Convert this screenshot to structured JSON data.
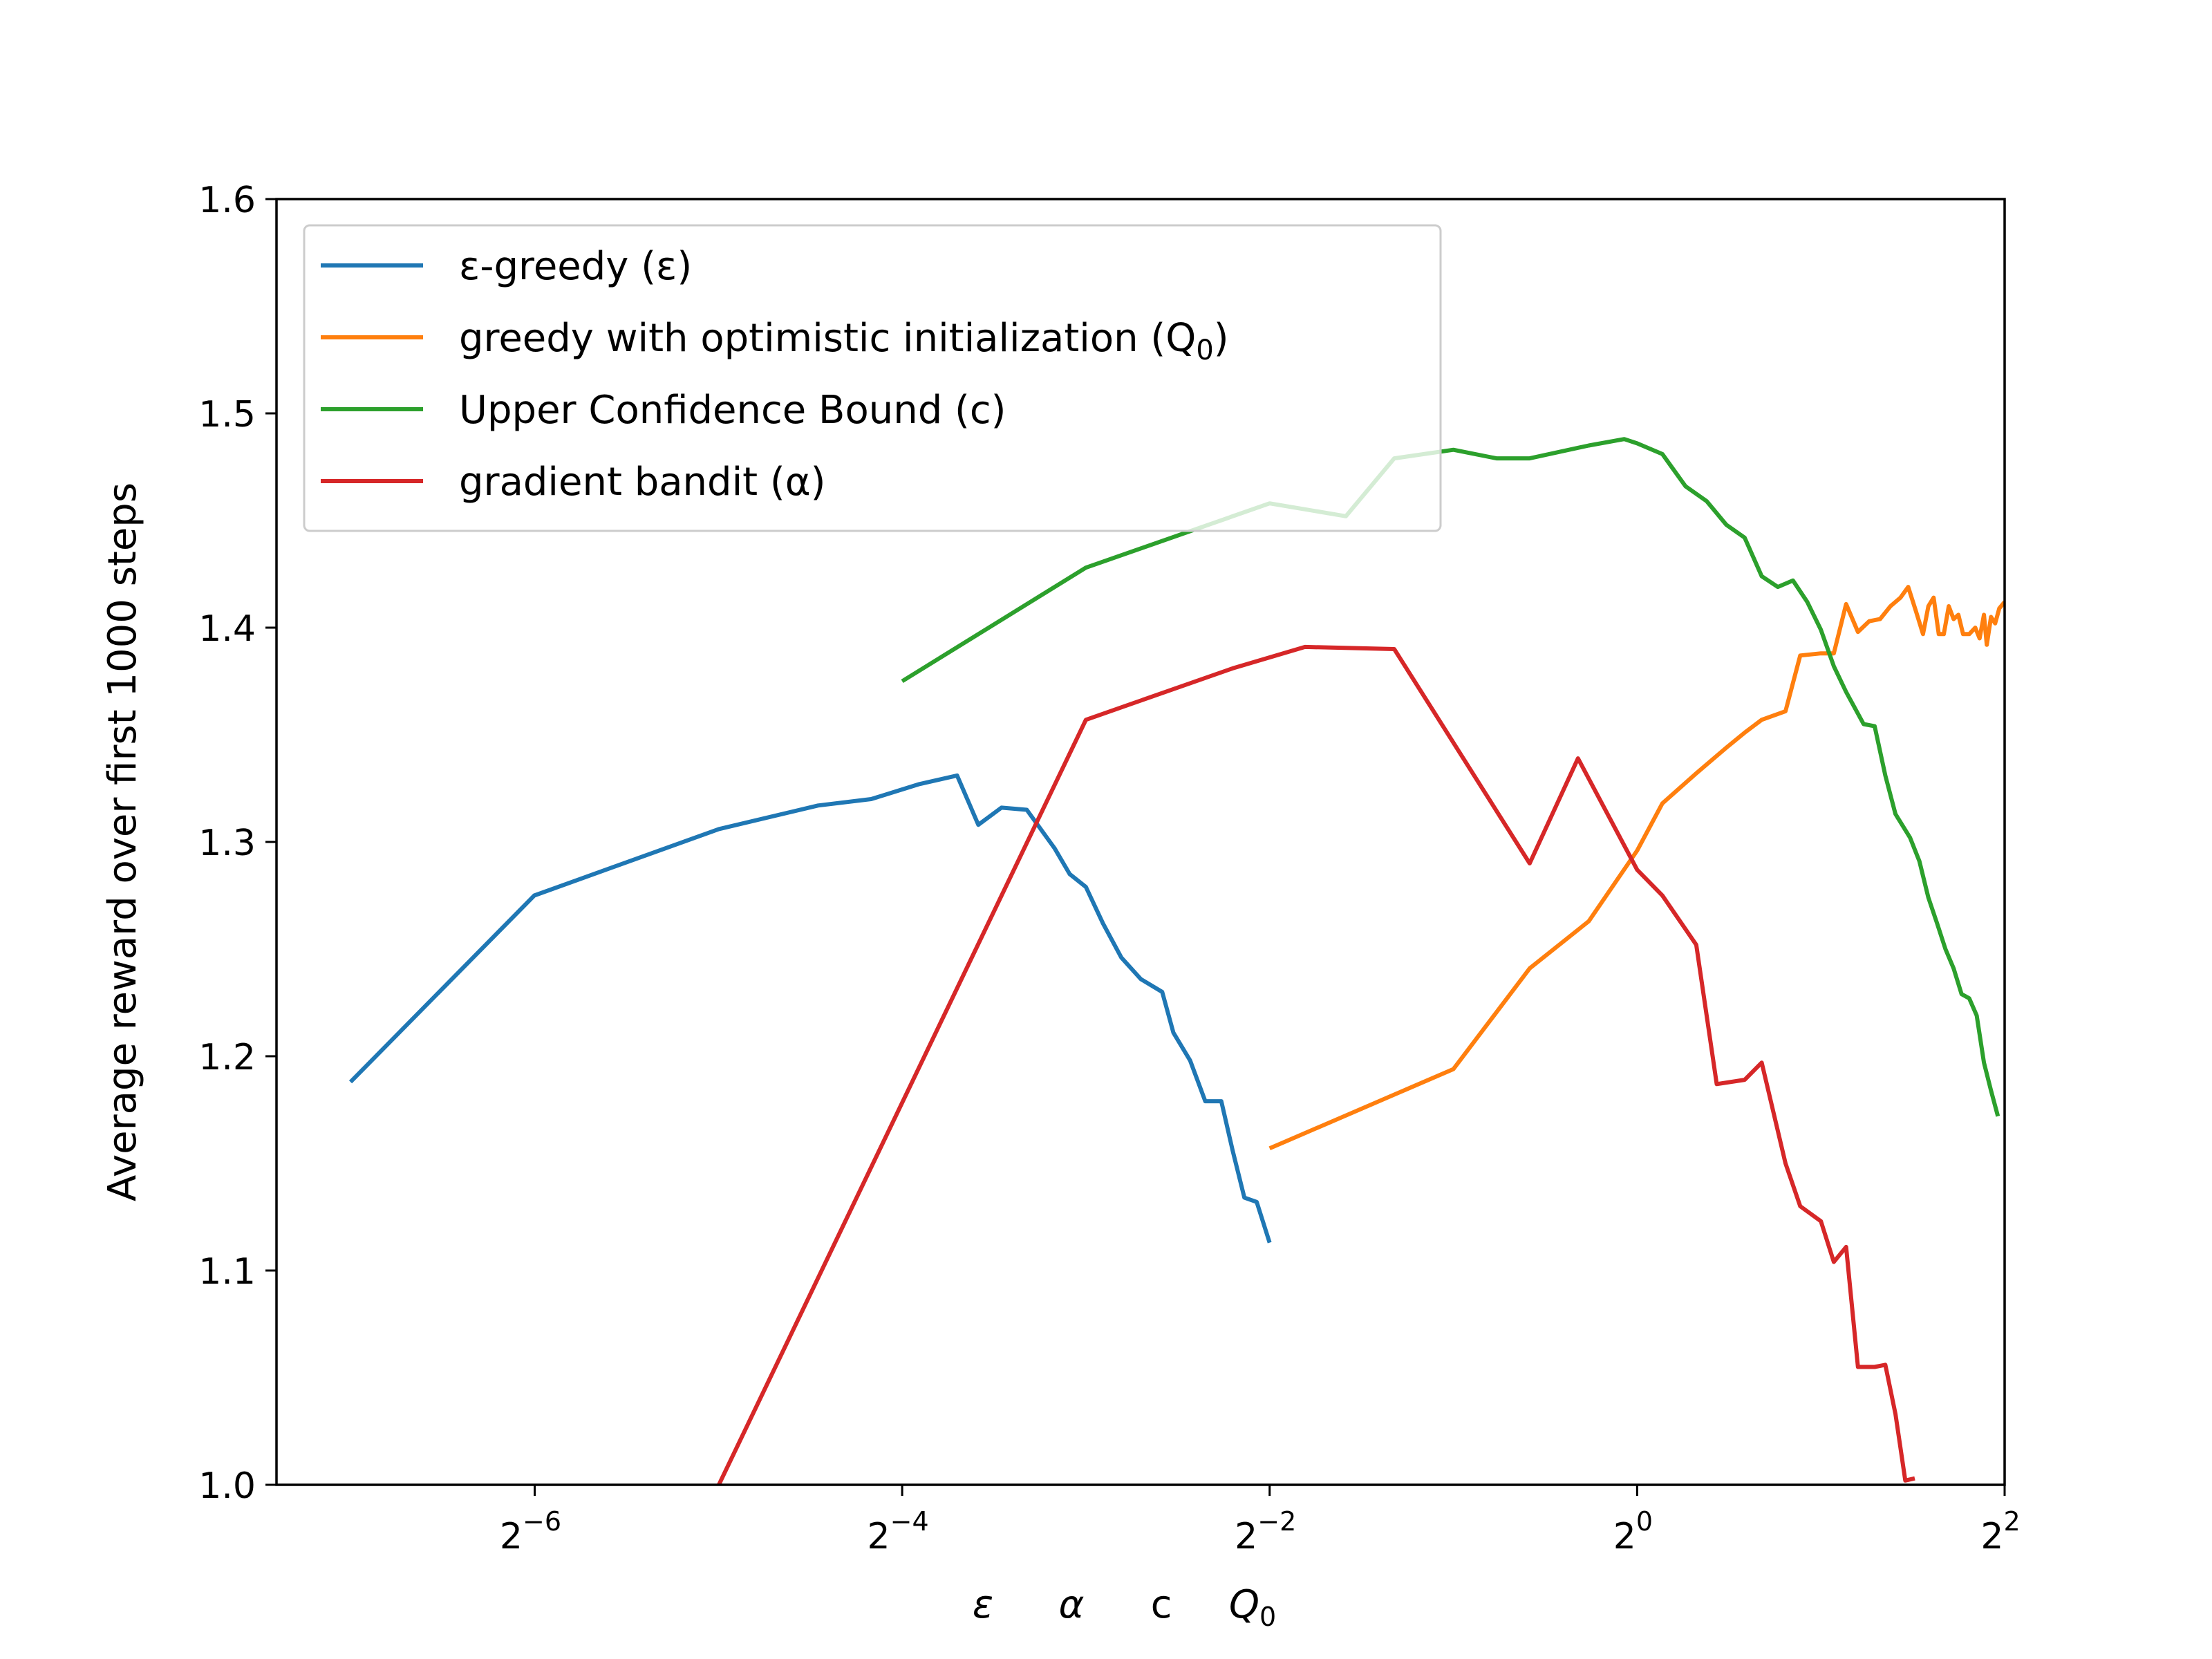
{
  "chart_data": {
    "type": "line",
    "xscale": "log2",
    "xlim": [
      0.0059,
      4
    ],
    "ylim": [
      1.0,
      1.6
    ],
    "ylabel": "Average reward over first 1000 steps",
    "xlabel_parts": [
      "ε",
      "α",
      "c",
      "Q",
      "0"
    ],
    "xticks": [
      {
        "value": 0.015625,
        "base": "2",
        "exp": "−6"
      },
      {
        "value": 0.0625,
        "base": "2",
        "exp": "−4"
      },
      {
        "value": 0.25,
        "base": "2",
        "exp": "−2"
      },
      {
        "value": 1,
        "base": "2",
        "exp": "0"
      },
      {
        "value": 4,
        "base": "2",
        "exp": "2"
      }
    ],
    "yticks": [
      "1.0",
      "1.1",
      "1.2",
      "1.3",
      "1.4",
      "1.5",
      "1.6"
    ],
    "legend": {
      "position": "upper left"
    },
    "series": [
      {
        "name_main": "ε-greedy (ε)",
        "name_sub": "",
        "color": "#1f77b4",
        "points": [
          [
            0.0078,
            1.188
          ],
          [
            0.0156,
            1.275
          ],
          [
            0.0313,
            1.306
          ],
          [
            0.0455,
            1.317
          ],
          [
            0.0556,
            1.32
          ],
          [
            0.0667,
            1.327
          ],
          [
            0.0769,
            1.331
          ],
          [
            0.0833,
            1.308
          ],
          [
            0.0909,
            1.316
          ],
          [
            0.1,
            1.315
          ],
          [
            0.1111,
            1.297
          ],
          [
            0.1176,
            1.285
          ],
          [
            0.125,
            1.279
          ],
          [
            0.1333,
            1.262
          ],
          [
            0.1429,
            1.246
          ],
          [
            0.1538,
            1.236
          ],
          [
            0.1667,
            1.23
          ],
          [
            0.1739,
            1.211
          ],
          [
            0.1852,
            1.198
          ],
          [
            0.1961,
            1.179
          ],
          [
            0.2083,
            1.179
          ],
          [
            0.2174,
            1.156
          ],
          [
            0.2273,
            1.134
          ],
          [
            0.2381,
            1.132
          ],
          [
            0.25,
            1.113
          ]
        ]
      },
      {
        "name_main": "greedy with optimistic initialization (Q",
        "name_sub": "0",
        "color": "#ff7f0e",
        "points": [
          [
            0.25,
            1.157
          ],
          [
            0.5,
            1.194
          ],
          [
            0.6667,
            1.241
          ],
          [
            0.8333,
            1.263
          ],
          [
            1.0,
            1.296
          ],
          [
            1.1,
            1.318
          ],
          [
            1.25,
            1.332
          ],
          [
            1.4,
            1.344
          ],
          [
            1.5,
            1.351
          ],
          [
            1.6,
            1.357
          ],
          [
            1.75,
            1.361
          ],
          [
            1.85,
            1.387
          ],
          [
            2.0,
            1.388
          ],
          [
            2.1,
            1.388
          ],
          [
            2.2,
            1.411
          ],
          [
            2.3,
            1.398
          ],
          [
            2.4,
            1.403
          ],
          [
            2.5,
            1.404
          ],
          [
            2.6,
            1.41
          ],
          [
            2.7,
            1.414
          ],
          [
            2.78,
            1.419
          ],
          [
            2.86,
            1.408
          ],
          [
            2.94,
            1.397
          ],
          [
            3.0,
            1.41
          ],
          [
            3.06,
            1.414
          ],
          [
            3.12,
            1.397
          ],
          [
            3.18,
            1.397
          ],
          [
            3.24,
            1.41
          ],
          [
            3.3,
            1.404
          ],
          [
            3.36,
            1.406
          ],
          [
            3.42,
            1.397
          ],
          [
            3.5,
            1.397
          ],
          [
            3.58,
            1.4
          ],
          [
            3.64,
            1.395
          ],
          [
            3.7,
            1.406
          ],
          [
            3.74,
            1.392
          ],
          [
            3.8,
            1.405
          ],
          [
            3.86,
            1.402
          ],
          [
            3.92,
            1.409
          ],
          [
            4.0,
            1.412
          ]
        ]
      },
      {
        "name_main": "Upper Confidence Bound (c)",
        "name_sub": "",
        "color": "#2ca02c",
        "points": [
          [
            0.0625,
            1.375
          ],
          [
            0.125,
            1.428
          ],
          [
            0.25,
            1.458
          ],
          [
            0.3333,
            1.452
          ],
          [
            0.4,
            1.479
          ],
          [
            0.5,
            1.483
          ],
          [
            0.5882,
            1.479
          ],
          [
            0.6667,
            1.479
          ],
          [
            0.8333,
            1.485
          ],
          [
            0.9524,
            1.488
          ],
          [
            1.0,
            1.486
          ],
          [
            1.1,
            1.481
          ],
          [
            1.2,
            1.466
          ],
          [
            1.3,
            1.459
          ],
          [
            1.4,
            1.448
          ],
          [
            1.5,
            1.442
          ],
          [
            1.6,
            1.424
          ],
          [
            1.7,
            1.419
          ],
          [
            1.8,
            1.422
          ],
          [
            1.9,
            1.412
          ],
          [
            2.0,
            1.399
          ],
          [
            2.1,
            1.382
          ],
          [
            2.2,
            1.37
          ],
          [
            2.35,
            1.355
          ],
          [
            2.45,
            1.354
          ],
          [
            2.55,
            1.331
          ],
          [
            2.65,
            1.313
          ],
          [
            2.8,
            1.302
          ],
          [
            2.9,
            1.291
          ],
          [
            3.0,
            1.274
          ],
          [
            3.1,
            1.262
          ],
          [
            3.2,
            1.25
          ],
          [
            3.3,
            1.241
          ],
          [
            3.4,
            1.229
          ],
          [
            3.5,
            1.227
          ],
          [
            3.6,
            1.219
          ],
          [
            3.7,
            1.197
          ],
          [
            3.8,
            1.184
          ],
          [
            3.9,
            1.172
          ]
        ]
      },
      {
        "name_main": "gradient bandit (α)",
        "name_sub": "",
        "color": "#d62728",
        "points": [
          [
            0.0313,
            1.0
          ],
          [
            0.125,
            1.357
          ],
          [
            0.2174,
            1.381
          ],
          [
            0.2857,
            1.391
          ],
          [
            0.4,
            1.39
          ],
          [
            0.6667,
            1.29
          ],
          [
            0.8,
            1.339
          ],
          [
            1.0,
            1.287
          ],
          [
            1.1,
            1.275
          ],
          [
            1.25,
            1.252
          ],
          [
            1.35,
            1.187
          ],
          [
            1.5,
            1.189
          ],
          [
            1.6,
            1.197
          ],
          [
            1.75,
            1.15
          ],
          [
            1.85,
            1.13
          ],
          [
            2.0,
            1.123
          ],
          [
            2.1,
            1.104
          ],
          [
            2.2,
            1.111
          ],
          [
            2.3,
            1.055
          ],
          [
            2.45,
            1.055
          ],
          [
            2.55,
            1.056
          ],
          [
            2.65,
            1.033
          ],
          [
            2.75,
            1.002
          ],
          [
            2.85,
            1.003
          ]
        ]
      }
    ]
  }
}
